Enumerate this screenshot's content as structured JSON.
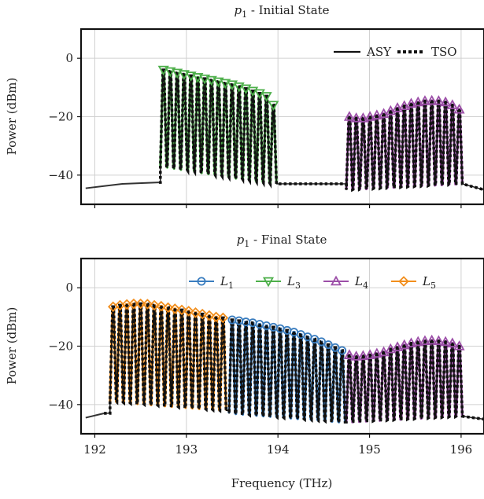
{
  "chart_data": [
    {
      "type": "line",
      "title": "p₁ - Initial State",
      "title_base": "p",
      "title_sub": "1",
      "title_rest": " - Initial State",
      "xlabel": "",
      "ylabel": "Power (dBm)",
      "xlim": [
        191.85,
        196.25
      ],
      "ylim": [
        -50,
        10
      ],
      "yticks": [
        0,
        -20,
        -40
      ],
      "ytick_labels": [
        "0",
        "−20",
        "−40"
      ],
      "xticks": [
        192,
        193,
        194,
        195,
        196
      ],
      "grid": true,
      "legend": {
        "placement": "top-right",
        "entries": [
          {
            "label": "ASY",
            "style": "solid",
            "color": "#111111"
          },
          {
            "label": "TSO",
            "style": "dotted",
            "color": "#111111"
          }
        ]
      },
      "noise_floor": {
        "x": [
          191.9,
          192.3,
          192.7
        ],
        "y": [
          -44.5,
          -43,
          -42.5
        ]
      },
      "series": [
        {
          "label_base": "L",
          "label_sub": "3",
          "marker": "triangle-down",
          "color": "#4daf4a",
          "x_start": 192.75,
          "x_step": 0.075,
          "count": 17,
          "peaks": [
            -4,
            -4.5,
            -5,
            -5.5,
            -6,
            -6.5,
            -7,
            -7.5,
            -8,
            -8.5,
            -9,
            -9.7,
            -10.4,
            -11.2,
            -12,
            -13,
            -16
          ],
          "troughs_start": -37,
          "troughs_end": -43
        },
        {
          "label_base": "L",
          "label_sub": "4",
          "marker": "triangle-up",
          "color": "#9c4fa8",
          "x_start": 194.78,
          "x_step": 0.075,
          "count": 17,
          "peaks": [
            -20,
            -20.5,
            -20.5,
            -20,
            -19.5,
            -19,
            -18,
            -17,
            -16.3,
            -15.5,
            -15,
            -14.6,
            -14.5,
            -14.6,
            -15,
            -16,
            -17.5
          ],
          "troughs_start": -45,
          "troughs_end": -43
        }
      ]
    },
    {
      "type": "line",
      "title": "p₁ - Final State",
      "title_base": "p",
      "title_sub": "1",
      "title_rest": " - Final State",
      "xlabel": "Frequency (THz)",
      "ylabel": "Power (dBm)",
      "xlim": [
        191.85,
        196.25
      ],
      "ylim": [
        -50,
        10
      ],
      "yticks": [
        0,
        -20,
        -40
      ],
      "ytick_labels": [
        "0",
        "−20",
        "−40"
      ],
      "xticks": [
        192,
        193,
        194,
        195,
        196
      ],
      "xtick_labels": [
        "192",
        "193",
        "194",
        "195",
        "196"
      ],
      "grid": true,
      "legend": {
        "placement": "top-right",
        "entries": [
          {
            "base": "L",
            "sub": "1",
            "marker": "circle",
            "color": "#3a7dbf"
          },
          {
            "base": "L",
            "sub": "3",
            "marker": "triangle-down",
            "color": "#4daf4a"
          },
          {
            "base": "L",
            "sub": "4",
            "marker": "triangle-up",
            "color": "#9c4fa8"
          },
          {
            "base": "L",
            "sub": "5",
            "marker": "diamond",
            "color": "#f28e1c"
          }
        ]
      },
      "noise_floor": {
        "x": [
          191.9,
          192.1
        ],
        "y": [
          -44.5,
          -43
        ]
      },
      "series": [
        {
          "label_base": "L",
          "label_sub": "5",
          "marker": "diamond",
          "color": "#f28e1c",
          "x_start": 192.2,
          "x_step": 0.075,
          "count": 17,
          "peaks": [
            -6.5,
            -6,
            -5.7,
            -5.5,
            -5.5,
            -5.6,
            -6,
            -6.3,
            -6.8,
            -7.2,
            -7.6,
            -8,
            -8.5,
            -9,
            -9.5,
            -10,
            -10.3
          ],
          "troughs_start": -39,
          "troughs_end": -42
        },
        {
          "label_base": "L",
          "label_sub": "1",
          "marker": "circle",
          "color": "#3a7dbf",
          "x_start": 193.5,
          "x_step": 0.075,
          "count": 17,
          "peaks": [
            -11,
            -11.3,
            -11.7,
            -12,
            -12.5,
            -13,
            -13.5,
            -14,
            -14.6,
            -15.2,
            -16,
            -16.8,
            -17.6,
            -18.5,
            -19.5,
            -20.5,
            -21.5
          ],
          "troughs_start": -43,
          "troughs_end": -46
        },
        {
          "label_base": "L",
          "label_sub": "4",
          "marker": "triangle-up",
          "color": "#9c4fa8",
          "x_start": 194.78,
          "x_step": 0.075,
          "count": 17,
          "peaks": [
            -23,
            -23.5,
            -23.3,
            -23,
            -22.5,
            -22,
            -21,
            -20.3,
            -19.6,
            -19,
            -18.5,
            -18.2,
            -18,
            -18.2,
            -18.5,
            -19,
            -20
          ],
          "troughs_start": -46,
          "troughs_end": -44
        }
      ]
    }
  ]
}
